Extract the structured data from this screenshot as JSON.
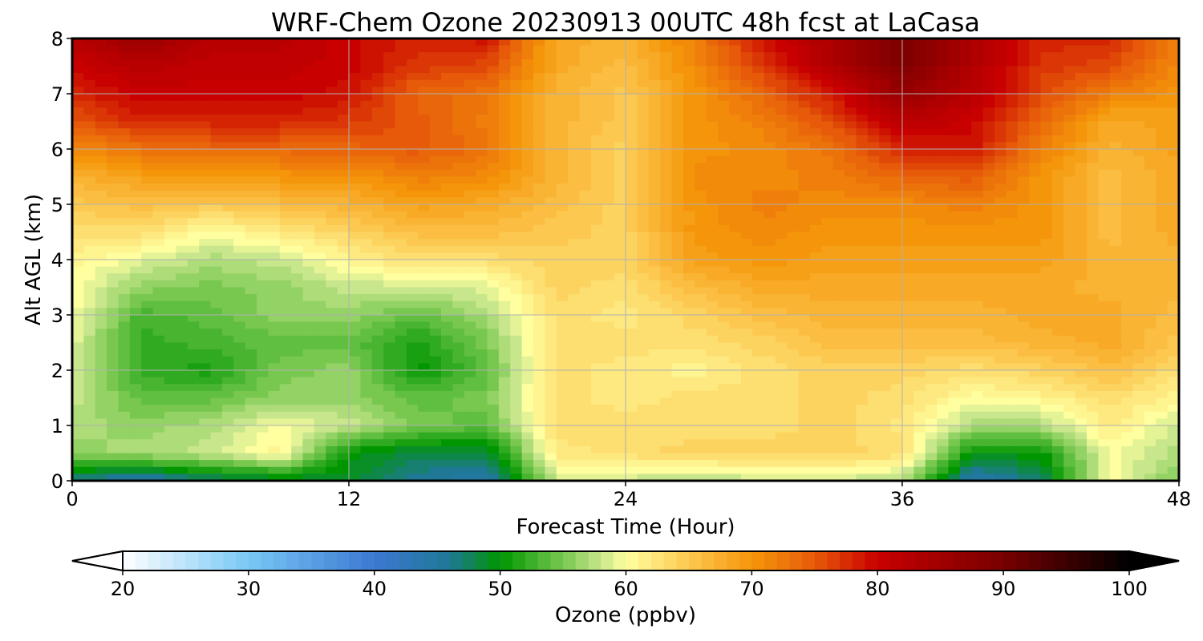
{
  "chart_data": {
    "type": "heatmap",
    "title": "WRF-Chem Ozone  20230913 00UTC 48h fcst at LaCasa",
    "xlabel": "Forecast Time (Hour)",
    "ylabel": "Alt AGL (km)",
    "xlim": [
      0,
      48
    ],
    "ylim": [
      0,
      8
    ],
    "xticks": [
      0,
      12,
      24,
      36,
      48
    ],
    "yticks": [
      0,
      1,
      2,
      3,
      4,
      5,
      6,
      7,
      8
    ],
    "grid": true,
    "x": [
      0,
      3,
      6,
      9,
      12,
      15,
      18,
      21,
      24,
      27,
      30,
      33,
      36,
      39,
      42,
      45,
      48
    ],
    "y": [
      0,
      0.5,
      1,
      1.5,
      2,
      2.5,
      3,
      3.5,
      4,
      4.5,
      5,
      5.5,
      6,
      6.5,
      7,
      7.5,
      8
    ],
    "z": [
      [
        46,
        44,
        47,
        48,
        49,
        46,
        44,
        58,
        58,
        57,
        58,
        58,
        57,
        44,
        47,
        60,
        55
      ],
      [
        56,
        57,
        58,
        61,
        50,
        48,
        48,
        62,
        63,
        64,
        64,
        64,
        63,
        50,
        50,
        60,
        57
      ],
      [
        57,
        56,
        57,
        60,
        58,
        55,
        54,
        63,
        63,
        63,
        63,
        64,
        62,
        57,
        57,
        62,
        58
      ],
      [
        58,
        54,
        54,
        56,
        56,
        54,
        55,
        63,
        62,
        63,
        63,
        64,
        63,
        60,
        61,
        63,
        61
      ],
      [
        58,
        52,
        51,
        55,
        56,
        50,
        54,
        63,
        62,
        61,
        63,
        64,
        64,
        63,
        64,
        66,
        63
      ],
      [
        59,
        52,
        53,
        54,
        54,
        51,
        55,
        63,
        63,
        63,
        64,
        66,
        66,
        66,
        67,
        68,
        65
      ],
      [
        60,
        53,
        54,
        56,
        56,
        54,
        57,
        63,
        62,
        64,
        66,
        67,
        67,
        67,
        68,
        68,
        66
      ],
      [
        60,
        56,
        55,
        56,
        58,
        58,
        59,
        64,
        63,
        66,
        68,
        68,
        68,
        68,
        68,
        67,
        67
      ],
      [
        61,
        59,
        57,
        58,
        61,
        63,
        63,
        64,
        64,
        69,
        70,
        69,
        69,
        69,
        69,
        67,
        67
      ],
      [
        63,
        63,
        60,
        62,
        64,
        66,
        66,
        65,
        64,
        70,
        71,
        70,
        70,
        70,
        70,
        66,
        68
      ],
      [
        65,
        66,
        65,
        66,
        67,
        69,
        68,
        66,
        64,
        70,
        72,
        71,
        71,
        72,
        70,
        66,
        68
      ],
      [
        67,
        69,
        69,
        70,
        70,
        72,
        71,
        67,
        64,
        71,
        71,
        72,
        74,
        75,
        70,
        66,
        68
      ],
      [
        71,
        73,
        74,
        74,
        74,
        75,
        73,
        67,
        64,
        70,
        71,
        73,
        78,
        79,
        72,
        67,
        69
      ],
      [
        75,
        78,
        78,
        78,
        77,
        75,
        72,
        67,
        65,
        70,
        72,
        76,
        82,
        80,
        74,
        68,
        69
      ],
      [
        78,
        80,
        80,
        80,
        79,
        74,
        73,
        67,
        65,
        70,
        74,
        79,
        86,
        82,
        76,
        72,
        70
      ],
      [
        80,
        82,
        81,
        81,
        80,
        77,
        76,
        68,
        66,
        71,
        77,
        83,
        89,
        83,
        77,
        76,
        71
      ],
      [
        82,
        86,
        82,
        82,
        80,
        78,
        79,
        68,
        67,
        72,
        79,
        84,
        90,
        84,
        78,
        78,
        72
      ]
    ],
    "colorbar": {
      "label": "Ozone  (ppbv)",
      "min": 20,
      "max": 100,
      "ticks": [
        20,
        30,
        40,
        50,
        60,
        70,
        80,
        90,
        100
      ],
      "extend": "both",
      "stops": [
        {
          "v": 20,
          "c": "#ffffff"
        },
        {
          "v": 30,
          "c": "#78c8f5"
        },
        {
          "v": 40,
          "c": "#3c78d2"
        },
        {
          "v": 46,
          "c": "#1e7896"
        },
        {
          "v": 50,
          "c": "#009600"
        },
        {
          "v": 55,
          "c": "#78c850"
        },
        {
          "v": 58,
          "c": "#c8e68c"
        },
        {
          "v": 60,
          "c": "#ffffa0"
        },
        {
          "v": 65,
          "c": "#fcc850"
        },
        {
          "v": 70,
          "c": "#f5960a"
        },
        {
          "v": 75,
          "c": "#e65a0a"
        },
        {
          "v": 80,
          "c": "#c80000"
        },
        {
          "v": 90,
          "c": "#780000"
        },
        {
          "v": 100,
          "c": "#000000"
        }
      ]
    }
  }
}
